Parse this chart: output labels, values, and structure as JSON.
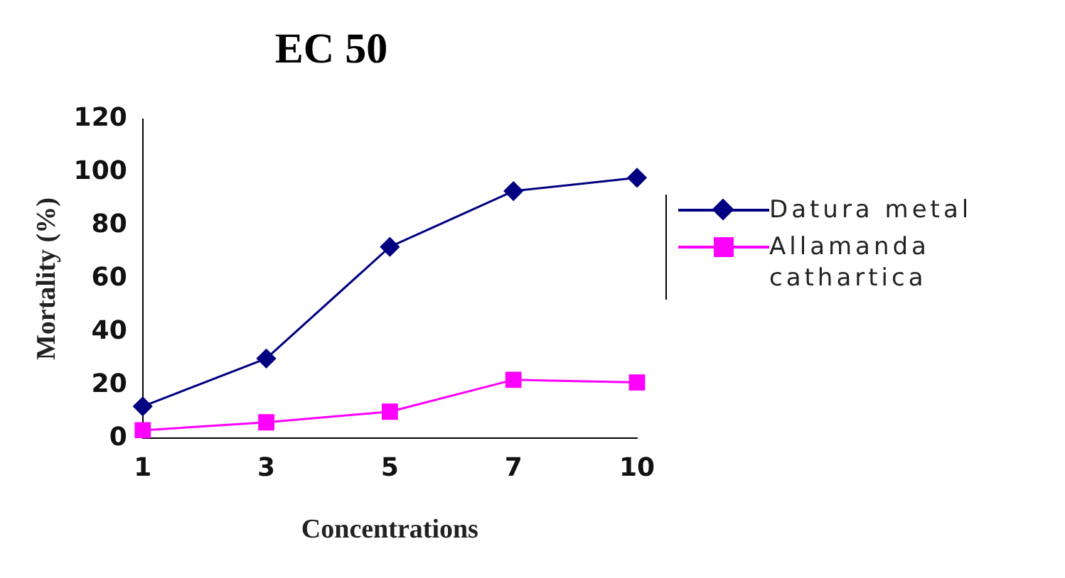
{
  "chart_data": {
    "type": "line",
    "title": "EC 50",
    "xlabel": "Concentrations",
    "ylabel": "Mortality (%)",
    "categories": [
      "1",
      "3",
      "5",
      "7",
      "10"
    ],
    "series": [
      {
        "name": "Datura metal",
        "color": "#000080",
        "marker": "diamond",
        "values": [
          12,
          30,
          72,
          93,
          98
        ]
      },
      {
        "name": "Allamanda cathartica",
        "color": "#ff00ff",
        "marker": "square",
        "values": [
          3,
          6,
          10,
          22,
          21
        ]
      }
    ],
    "ylim": [
      0,
      120
    ],
    "yticks": [
      0,
      20,
      40,
      60,
      80,
      100,
      120
    ],
    "grid": false,
    "legend": "right"
  }
}
